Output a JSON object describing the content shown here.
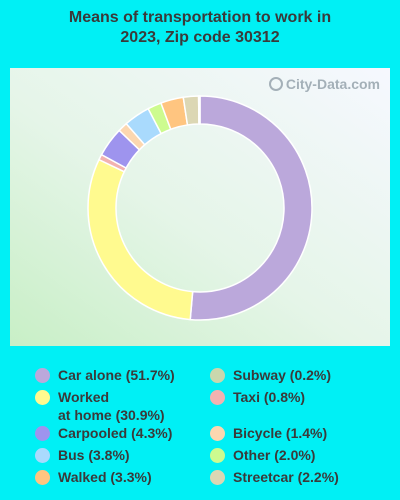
{
  "title_line1": "Means of transportation to work in",
  "title_line2": "2023, Zip code 30312",
  "watermark": "City-Data.com",
  "chart_data": {
    "type": "pie",
    "donut": true,
    "title": "Means of transportation to work in 2023, Zip code 30312",
    "slices": [
      {
        "label": "Car alone",
        "value": 51.7,
        "color": "#bba8db"
      },
      {
        "label": "Worked at home",
        "value": 30.9,
        "color": "#fffa8f"
      },
      {
        "label": "Taxi",
        "value": 0.8,
        "color": "#f2b2b0"
      },
      {
        "label": "Carpooled",
        "value": 4.3,
        "color": "#9e94ee"
      },
      {
        "label": "Bicycle",
        "value": 1.4,
        "color": "#fcd7b0"
      },
      {
        "label": "Bus",
        "value": 3.8,
        "color": "#a9dafd"
      },
      {
        "label": "Other",
        "value": 2.0,
        "color": "#cdfb8f"
      },
      {
        "label": "Walked",
        "value": 3.3,
        "color": "#ffc580"
      },
      {
        "label": "Streetcar",
        "value": 2.2,
        "color": "#dcd7b4"
      },
      {
        "label": "Subway",
        "value": 0.2,
        "color": "#c9d7ad"
      }
    ]
  },
  "legend": [
    {
      "text": "Car alone (51.7%)",
      "color": "#bba8db"
    },
    {
      "text": "Worked\nat home (30.9%)",
      "color": "#fffa8f"
    },
    {
      "text": "Carpooled (4.3%)",
      "color": "#9e94ee"
    },
    {
      "text": "Bus (3.8%)",
      "color": "#a9dafd"
    },
    {
      "text": "Walked (3.3%)",
      "color": "#ffc580"
    },
    {
      "text": "Subway (0.2%)",
      "color": "#c9d7ad"
    },
    {
      "text": "Taxi (0.8%)",
      "color": "#f2b2b0"
    },
    {
      "text": "Bicycle (1.4%)",
      "color": "#fcd7b0"
    },
    {
      "text": "Other (2.0%)",
      "color": "#cdfb8f"
    },
    {
      "text": "Streetcar (2.2%)",
      "color": "#dcd7b4"
    }
  ]
}
